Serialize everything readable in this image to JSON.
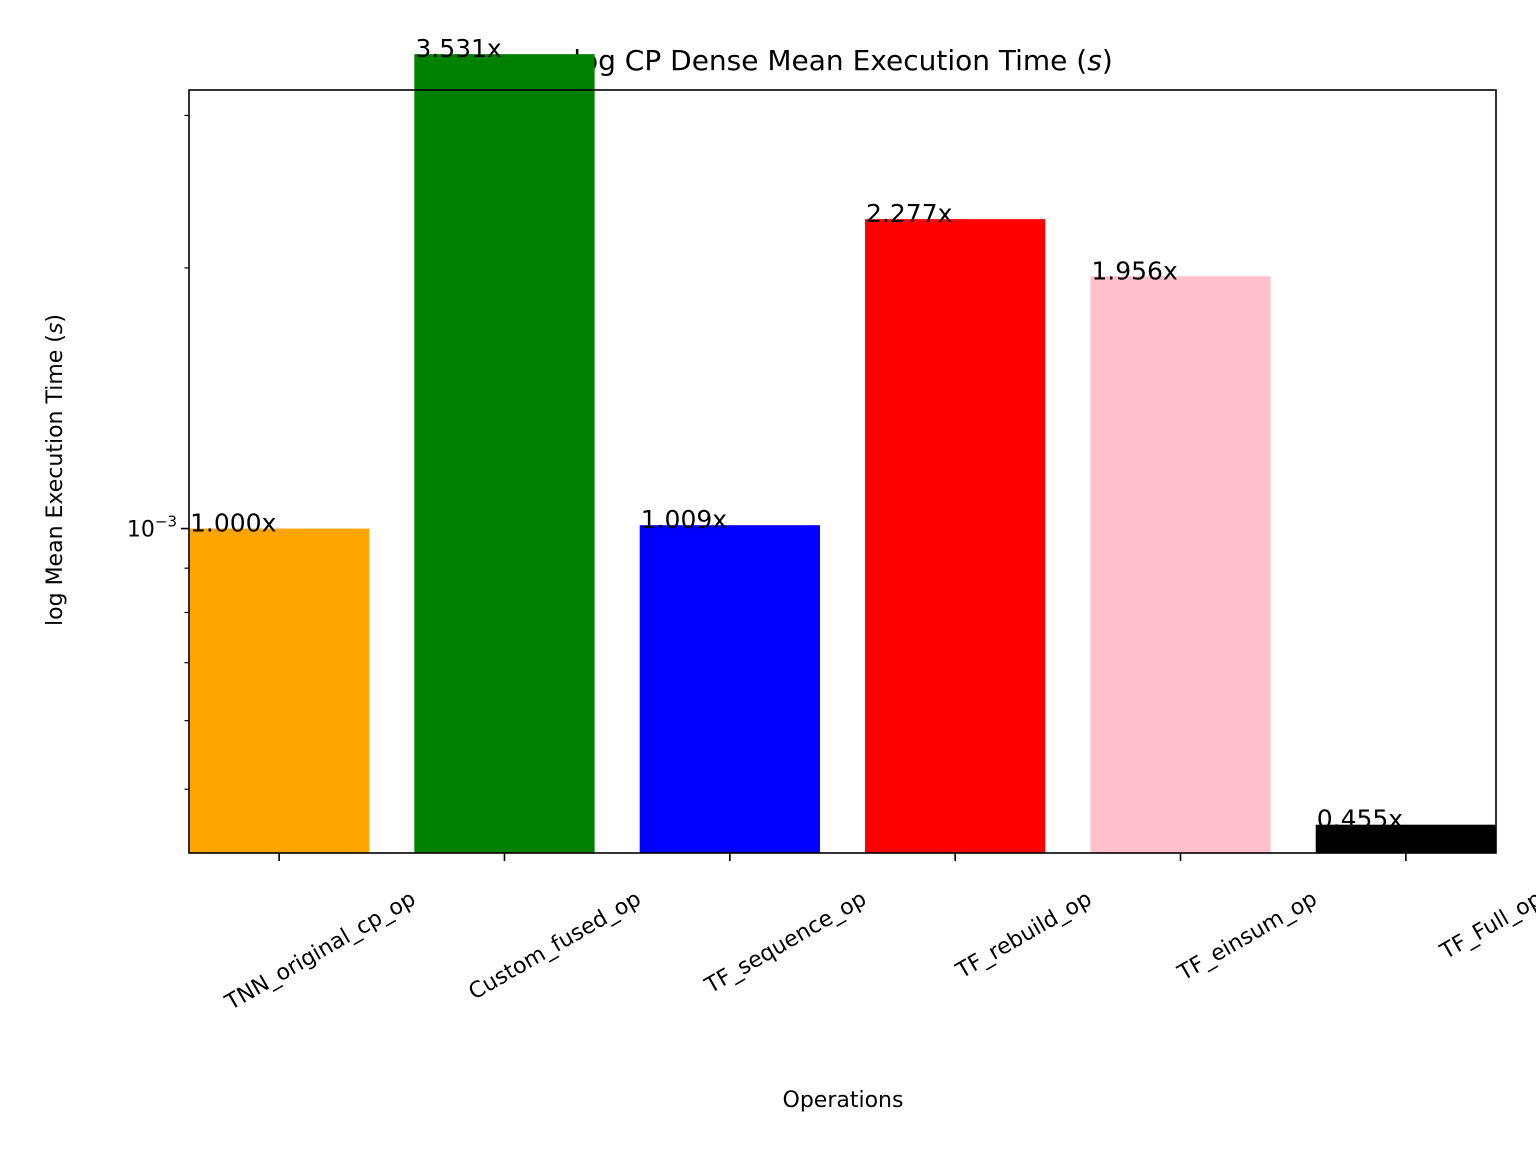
{
  "chart_data": {
    "type": "bar",
    "title": "log CP Dense Mean Execution Time (",
    "title_italic": "s",
    "title_suffix": ")",
    "xlabel": "Operations",
    "ylabel": "log Mean Execution Time (",
    "ylabel_italic": "s",
    "ylabel_suffix": ")",
    "yscale": "log",
    "ylim": [
      0.000422,
      0.00321
    ],
    "y_major_ticks": [
      {
        "value": 0.001,
        "base": "10",
        "exponent": "−3"
      }
    ],
    "y_minor_ticks": [
      0.0005,
      0.0006,
      0.0007,
      0.0008,
      0.0009,
      0.002,
      0.003
    ],
    "categories": [
      "TNN_original_cp_op",
      "Custom_fused_op",
      "TF_sequence_op",
      "TF_rebuild_op",
      "TF_einsum_op",
      "TF_Full_op"
    ],
    "values": [
      0.001,
      0.003531,
      0.001009,
      0.002277,
      0.001956,
      0.000455
    ],
    "bar_labels": [
      "1.000x",
      "3.531x",
      "1.009x",
      "2.277x",
      "1.956x",
      "0.455x"
    ],
    "colors": [
      "#ffa500",
      "#008000",
      "#0000ff",
      "#ff0000",
      "#ffc0cb",
      "#000000"
    ],
    "grid": false,
    "legend": "none",
    "xtick_rotation": -30
  }
}
